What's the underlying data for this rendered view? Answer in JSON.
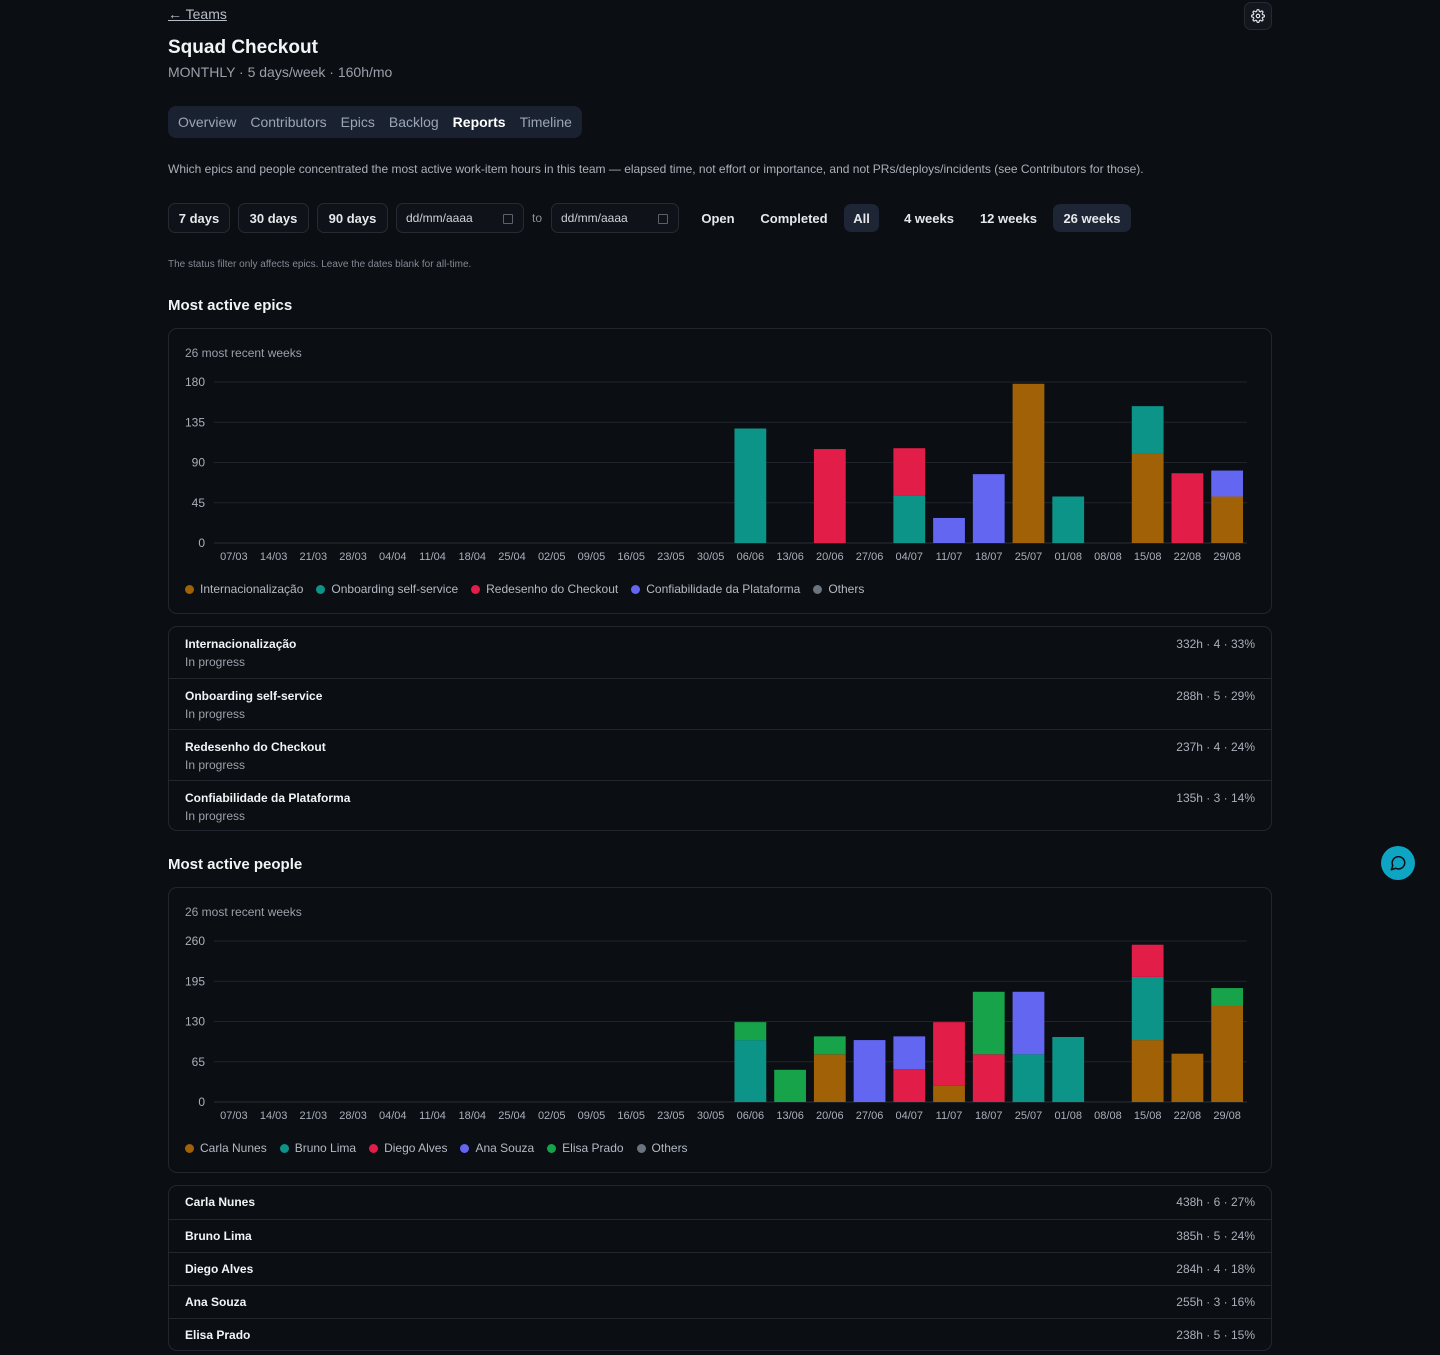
{
  "nav": {
    "back_label": "← Teams"
  },
  "header": {
    "title": "Squad Checkout",
    "subtitle": "MONTHLY · 5 days/week · 160h/mo"
  },
  "tabs": [
    {
      "label": "Overview",
      "active": false
    },
    {
      "label": "Contributors",
      "active": false
    },
    {
      "label": "Epics",
      "active": false
    },
    {
      "label": "Backlog",
      "active": false
    },
    {
      "label": "Reports",
      "active": true
    },
    {
      "label": "Timeline",
      "active": false
    }
  ],
  "description": "Which epics and people concentrated the most active work-item hours in this team — elapsed time, not effort or importance, and not PRs/deploys/incidents (see Contributors for those).",
  "filters": {
    "range_buttons": [
      "7 days",
      "30 days",
      "90 days"
    ],
    "date_from_placeholder": "dd/mm/aaaa",
    "date_to_placeholder": "dd/mm/aaaa",
    "to_label": "to",
    "status_options": [
      "Open",
      "Completed",
      "All"
    ],
    "status_selected": "All",
    "week_options": [
      "4 weeks",
      "12 weeks",
      "26 weeks"
    ],
    "week_selected": "26 weeks",
    "hint": "The status filter only affects epics. Leave the dates blank for all-time."
  },
  "epics_section": {
    "heading": "Most active epics",
    "card_label": "26 most recent weeks",
    "items": [
      {
        "name": "Internacionalização",
        "status": "In progress",
        "meta": "332h · 4 · 33%"
      },
      {
        "name": "Onboarding self-service",
        "status": "In progress",
        "meta": "288h · 5 · 29%"
      },
      {
        "name": "Redesenho do Checkout",
        "status": "In progress",
        "meta": "237h · 4 · 24%"
      },
      {
        "name": "Confiabilidade da Plataforma",
        "status": "In progress",
        "meta": "135h · 3 · 14%"
      }
    ]
  },
  "people_section": {
    "heading": "Most active people",
    "card_label": "26 most recent weeks",
    "items": [
      {
        "name": "Carla Nunes",
        "meta": "438h · 6 · 27%"
      },
      {
        "name": "Bruno Lima",
        "meta": "385h · 5 · 24%"
      },
      {
        "name": "Diego Alves",
        "meta": "284h · 4 · 18%"
      },
      {
        "name": "Ana Souza",
        "meta": "255h · 3 · 16%"
      },
      {
        "name": "Elisa Prado",
        "meta": "238h · 5 · 15%"
      }
    ]
  },
  "colors": {
    "accent_fab": "#0ea5c4",
    "active_tab_bg": "#1a2130"
  },
  "chart_data": [
    {
      "type": "bar",
      "stacked": true,
      "categories": [
        "07/03",
        "14/03",
        "21/03",
        "28/03",
        "04/04",
        "11/04",
        "18/04",
        "25/04",
        "02/05",
        "09/05",
        "16/05",
        "23/05",
        "30/05",
        "06/06",
        "13/06",
        "20/06",
        "27/06",
        "04/07",
        "11/07",
        "18/07",
        "25/07",
        "01/08",
        "08/08",
        "15/08",
        "22/08",
        "29/08"
      ],
      "ylim": [
        0,
        180
      ],
      "yticks": [
        0,
        45,
        90,
        135,
        180
      ],
      "grid": true,
      "legend_position": "bottom-left",
      "series": [
        {
          "name": "Internacionalização",
          "color": "#a16207",
          "values": [
            0,
            0,
            0,
            0,
            0,
            0,
            0,
            0,
            0,
            0,
            0,
            0,
            0,
            0,
            0,
            0,
            0,
            0,
            0,
            0,
            178,
            0,
            0,
            100,
            0,
            52
          ]
        },
        {
          "name": "Onboarding self-service",
          "color": "#0d9488",
          "values": [
            0,
            0,
            0,
            0,
            0,
            0,
            0,
            0,
            0,
            0,
            0,
            0,
            0,
            128,
            0,
            0,
            0,
            53,
            0,
            0,
            0,
            52,
            0,
            53,
            0,
            0
          ]
        },
        {
          "name": "Redesenho do Checkout",
          "color": "#e11d48",
          "values": [
            0,
            0,
            0,
            0,
            0,
            0,
            0,
            0,
            0,
            0,
            0,
            0,
            0,
            0,
            0,
            105,
            0,
            53,
            0,
            0,
            0,
            0,
            0,
            0,
            78,
            0
          ]
        },
        {
          "name": "Confiabilidade da Plataforma",
          "color": "#6366f1",
          "values": [
            0,
            0,
            0,
            0,
            0,
            0,
            0,
            0,
            0,
            0,
            0,
            0,
            0,
            0,
            0,
            0,
            0,
            0,
            28,
            77,
            0,
            0,
            0,
            0,
            0,
            29
          ]
        },
        {
          "name": "Others",
          "color": "#6b7280",
          "values": [
            0,
            0,
            0,
            0,
            0,
            0,
            0,
            0,
            0,
            0,
            0,
            0,
            0,
            0,
            0,
            0,
            0,
            0,
            0,
            0,
            0,
            0,
            0,
            0,
            0,
            0
          ]
        }
      ]
    },
    {
      "type": "bar",
      "stacked": true,
      "categories": [
        "07/03",
        "14/03",
        "21/03",
        "28/03",
        "04/04",
        "11/04",
        "18/04",
        "25/04",
        "02/05",
        "09/05",
        "16/05",
        "23/05",
        "30/05",
        "06/06",
        "13/06",
        "20/06",
        "27/06",
        "04/07",
        "11/07",
        "18/07",
        "25/07",
        "01/08",
        "08/08",
        "15/08",
        "22/08",
        "29/08"
      ],
      "ylim": [
        0,
        260
      ],
      "yticks": [
        0,
        65,
        130,
        195,
        260
      ],
      "grid": true,
      "legend_position": "bottom-left",
      "series": [
        {
          "name": "Carla Nunes",
          "color": "#a16207",
          "values": [
            0,
            0,
            0,
            0,
            0,
            0,
            0,
            0,
            0,
            0,
            0,
            0,
            0,
            0,
            0,
            77,
            0,
            0,
            26,
            0,
            0,
            0,
            0,
            100,
            78,
            155
          ]
        },
        {
          "name": "Bruno Lima",
          "color": "#0d9488",
          "values": [
            0,
            0,
            0,
            0,
            0,
            0,
            0,
            0,
            0,
            0,
            0,
            0,
            0,
            100,
            0,
            0,
            0,
            0,
            0,
            0,
            77,
            105,
            0,
            102,
            0,
            0
          ]
        },
        {
          "name": "Diego Alves",
          "color": "#e11d48",
          "values": [
            0,
            0,
            0,
            0,
            0,
            0,
            0,
            0,
            0,
            0,
            0,
            0,
            0,
            0,
            0,
            0,
            0,
            53,
            103,
            77,
            0,
            0,
            0,
            52,
            0,
            0
          ]
        },
        {
          "name": "Ana Souza",
          "color": "#6366f1",
          "values": [
            0,
            0,
            0,
            0,
            0,
            0,
            0,
            0,
            0,
            0,
            0,
            0,
            0,
            0,
            0,
            0,
            100,
            53,
            0,
            0,
            101,
            0,
            0,
            0,
            0,
            0
          ]
        },
        {
          "name": "Elisa Prado",
          "color": "#16a34a",
          "values": [
            0,
            0,
            0,
            0,
            0,
            0,
            0,
            0,
            0,
            0,
            0,
            0,
            0,
            29,
            52,
            29,
            0,
            0,
            0,
            101,
            0,
            0,
            0,
            0,
            0,
            29
          ]
        },
        {
          "name": "Others",
          "color": "#6b7280",
          "values": [
            0,
            0,
            0,
            0,
            0,
            0,
            0,
            0,
            0,
            0,
            0,
            0,
            0,
            0,
            0,
            0,
            0,
            0,
            0,
            0,
            0,
            0,
            0,
            0,
            0,
            0
          ]
        }
      ]
    }
  ]
}
